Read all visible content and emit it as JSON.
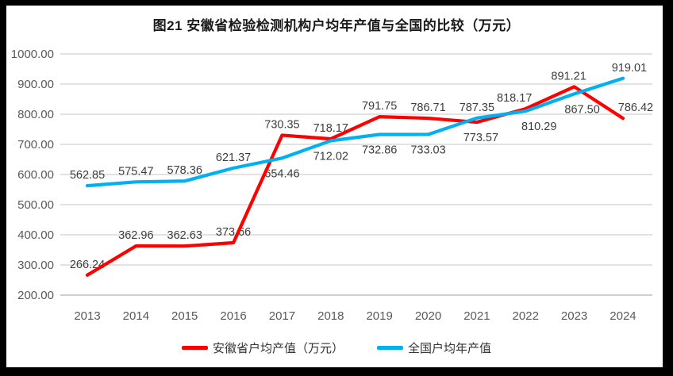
{
  "title": "图21 安徽省检验检测机构户均年产值与全国的比较（万元）",
  "chart_data": {
    "type": "line",
    "title": "图21 安徽省检验检测机构户均年产值与全国的比较（万元）",
    "categories": [
      "2013",
      "2014",
      "2015",
      "2016",
      "2017",
      "2018",
      "2019",
      "2020",
      "2021",
      "2022",
      "2023",
      "2024"
    ],
    "series": [
      {
        "name": "安徽省户均产值（万元）",
        "color": "#FE0000",
        "values": [
          266.24,
          362.96,
          362.63,
          373.66,
          730.35,
          718.17,
          791.75,
          786.71,
          773.57,
          818.17,
          891.21,
          786.42
        ],
        "label_pos": [
          "a",
          "a",
          "a",
          "a",
          "a",
          "a",
          "a",
          "a",
          "b",
          "a",
          "a",
          "a"
        ],
        "label_dx": [
          0,
          0,
          0,
          0,
          0,
          0,
          0,
          0,
          5,
          -14,
          -7,
          16
        ]
      },
      {
        "name": "全国户均年产值",
        "color": "#00B0F0",
        "values": [
          562.85,
          575.47,
          578.36,
          621.37,
          654.46,
          712.02,
          732.86,
          733.03,
          787.35,
          810.29,
          867.5,
          919.01
        ],
        "label_pos": [
          "a",
          "a",
          "a",
          "a",
          "b",
          "b",
          "b",
          "b",
          "a",
          "b",
          "b",
          "a"
        ],
        "label_dx": [
          0,
          0,
          0,
          0,
          0,
          0,
          0,
          0,
          0,
          17,
          10,
          8
        ]
      }
    ],
    "ylim": [
      200,
      1000
    ],
    "y_tick_step": 100,
    "y_tick_decimals": 2,
    "value_label_decimals": 2,
    "grid": "horizontal",
    "gridline_color": "#D9D9D9",
    "baseline_color": "#BFBFBF",
    "axis_label_color": "#595959",
    "data_label_color": "#3d3d3d",
    "legend_position": "bottom"
  },
  "legend": {
    "items": [
      {
        "label": "安徽省户均产值（万元）",
        "color": "#FE0000"
      },
      {
        "label": "全国户均年产值",
        "color": "#00B0F0"
      }
    ]
  }
}
